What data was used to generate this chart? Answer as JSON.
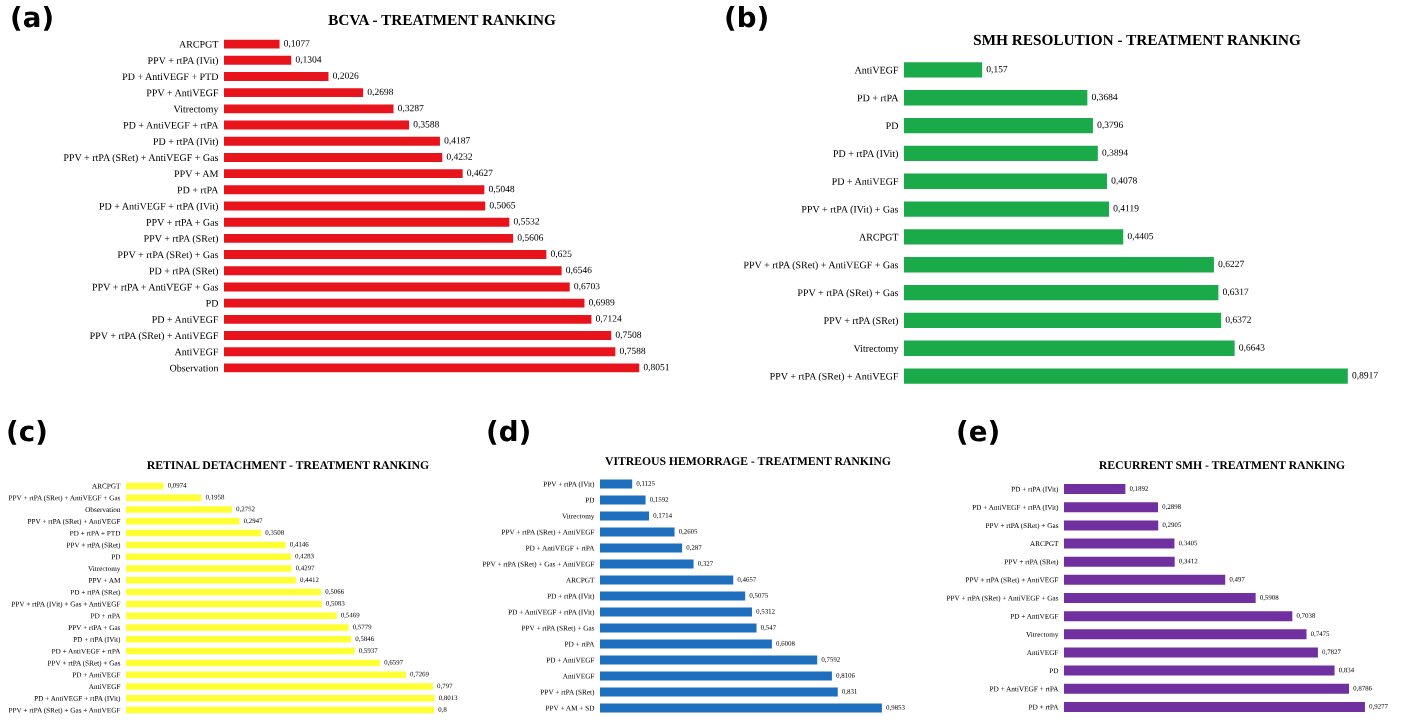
{
  "chart_data": [
    {
      "type": "bar",
      "orientation": "horizontal",
      "title": "BCVA - TREATMENT RANKING",
      "annotations": [
        "(a)"
      ],
      "tick_labels": "y",
      "categories": [
        "ARCPGT",
        "PPV + rtPA (IVit)",
        "PD + AntiVEGF + PTD",
        "PPV + AntiVEGF",
        "Vitrectomy",
        "PD + AntiVEGF + rtPA",
        "PD + rtPA (IVit)",
        "PPV + rtPA (SRet) + AntiVEGF + Gas",
        "PPV + AM",
        "PD + rtPA",
        "PD + AntiVEGF + rtPA (IVit)",
        "PPV + rtPA + Gas",
        "PPV + rtPA (SRet)",
        "PPV + rtPA (SRet) + Gas",
        "PD + rtPA (SRet)",
        "PPV + rtPA + AntiVEGF + Gas",
        "PD",
        "PD + AntiVEGF",
        "PPV + rtPA (SRet) + AntiVEGF",
        "AntiVEGF",
        "Observation"
      ],
      "values": [
        0.1077,
        0.1304,
        0.2026,
        0.2698,
        0.3287,
        0.3588,
        0.4187,
        0.4232,
        0.4627,
        0.5048,
        0.5065,
        0.5532,
        0.5606,
        0.625,
        0.6546,
        0.6703,
        0.6989,
        0.7124,
        0.7508,
        0.7588,
        0.8051
      ],
      "value_labels": [
        "0,1077",
        "0,1304",
        "0,2026",
        "0,2698",
        "0,3287",
        "0,3588",
        "0,4187",
        "0,4232",
        "0,4627",
        "0,5048",
        "0,5065",
        "0,5532",
        "0,5606",
        "0,625",
        "0,6546",
        "0,6703",
        "0,6989",
        "0,7124",
        "0,7508",
        "0,7588",
        "0,8051"
      ],
      "color": "#e8141c"
    },
    {
      "type": "bar",
      "orientation": "horizontal",
      "title": "SMH RESOLUTION - TREATMENT RANKING",
      "annotations": [
        "(b)"
      ],
      "tick_labels": "y",
      "categories": [
        "AntiVEGF",
        "PD + rtPA",
        "PD",
        "PD + rtPA (IVit)",
        "PD + AntiVEGF",
        "PPV + rtPA (IVit) + Gas",
        "ARCPGT",
        "PPV + rtPA (SRet) + AntiVEGF + Gas",
        "PPV + rtPA (SRet) + Gas",
        "PPV + rtPA (SRet)",
        "Vitrectomy",
        "PPV + rtPA (SRet) + AntiVEGF"
      ],
      "values": [
        0.157,
        0.3684,
        0.3796,
        0.3894,
        0.4078,
        0.4119,
        0.4405,
        0.6227,
        0.6317,
        0.6372,
        0.6643,
        0.8917
      ],
      "value_labels": [
        "0,157",
        "0,3684",
        "0,3796",
        "0,3894",
        "0,4078",
        "0,4119",
        "0,4405",
        "0,6227",
        "0,6317",
        "0,6372",
        "0,6643",
        "0,8917"
      ],
      "color": "#1aaa4a"
    },
    {
      "type": "bar",
      "orientation": "horizontal",
      "title": "RETINAL DETACHMENT - TREATMENT RANKING",
      "annotations": [
        "(c)"
      ],
      "tick_labels": "y",
      "categories": [
        "ARCPGT",
        "PPV + rtPA (SRet) + AntiVEGF + Gas",
        "Observation",
        "PPV + rtPA (SRet) + AntiVEGF",
        "PD + rtPA + PTD",
        "PPV + rtPA (SRet)",
        "PD",
        "Vitrectomy",
        "PPV + AM",
        "PD + rtPA (SRet)",
        "PPV + rtPA (IVit) + Gas + AntiVEGF",
        "PD + rtPA",
        "PPV + rtPA + Gas",
        "PD + rtPA (IVit)",
        "PD + AntiVEGF + rtPA",
        "PPV + rtPA (SRet) + Gas",
        "PD + AntiVEGF",
        "AntiVEGF",
        "PD + AntiVEGF + rtPA (IVit)",
        "PPV + rtPA (SRet) + Gas + AntiVEGF"
      ],
      "values": [
        0.0974,
        0.1958,
        0.2752,
        0.2947,
        0.3508,
        0.4146,
        0.4283,
        0.4297,
        0.4412,
        0.5066,
        0.5083,
        0.5469,
        0.5779,
        0.5846,
        0.5937,
        0.6597,
        0.7269,
        0.797,
        0.8013,
        0.8
      ],
      "value_labels": [
        "0,0974",
        "0,1958",
        "0,2752",
        "0,2947",
        "0,3508",
        "0,4146",
        "0,4283",
        "0,4297",
        "0,4412",
        "0,5066",
        "0,5083",
        "0,5469",
        "0,5779",
        "0,5846",
        "0,5937",
        "0,6597",
        "0,7269",
        "0,797",
        "0,8013",
        "0,8"
      ],
      "color": "#ffff33"
    },
    {
      "type": "bar",
      "orientation": "horizontal",
      "title": "VITREOUS HEMORRAGE - TREATMENT RANKING",
      "annotations": [
        "(d)"
      ],
      "tick_labels": "y",
      "categories": [
        "PPV + rtPA (IVit)",
        "PD",
        "Vitrectomy",
        "PPV + rtPA (SRet) + AntiVEGF",
        "PD + AntiVEGF + rtPA",
        "PPV + rtPA (SRet) + Gas + AntiVEGF",
        "ARCPGT",
        "PD + rtPA (IVit)",
        "PD + AntiVEGF + rtPA (IVit)",
        "PPV + rtPA (SRet) + Gas",
        "PD + rtPA",
        "PD + AntiVEGF",
        "AntiVEGF",
        "PPV + rtPA (SRet)",
        "PPV + AM + SD"
      ],
      "values": [
        0.1125,
        0.1592,
        0.1714,
        0.2605,
        0.287,
        0.327,
        0.4657,
        0.5075,
        0.5312,
        0.547,
        0.6008,
        0.7592,
        0.8106,
        0.831,
        0.9853
      ],
      "value_labels": [
        "0,1125",
        "0,1592",
        "0,1714",
        "0,2605",
        "0,287",
        "0,327",
        "0,4657",
        "0,5075",
        "0,5312",
        "0,547",
        "0,6008",
        "0,7592",
        "0,8106",
        "0,831",
        "0,9853"
      ],
      "color": "#1f6fbf"
    },
    {
      "type": "bar",
      "orientation": "horizontal",
      "title": "RECURRENT SMH - TREATMENT RANKING",
      "annotations": [
        "(e)"
      ],
      "tick_labels": "y",
      "categories": [
        "PD + rtPA (IVit)",
        "PD + AntiVEGF + rtPA (IVit)",
        "PPV + rtPA (SRet) + Gas",
        "ARCPGT",
        "PPV + rtPA (SRet)",
        "PPV + rtPA (SRet) + AntiVEGF",
        "PPV + rtPA (SRet) + AntiVEGF + Gas",
        "PD + AntiVEGF",
        "Vitrectomy",
        "AntiVEGF",
        "PD",
        "PD + AntiVEGF + rtPA",
        "PD + rtPA"
      ],
      "values": [
        0.1892,
        0.2898,
        0.2905,
        0.3405,
        0.3412,
        0.497,
        0.5908,
        0.7038,
        0.7475,
        0.7827,
        0.834,
        0.8786,
        0.9277
      ],
      "value_labels": [
        "0,1892",
        "0,2898",
        "0,2905",
        "0,3405",
        "0,3412",
        "0,497",
        "0,5908",
        "0,7038",
        "0,7475",
        "0,7827",
        "0,834",
        "0,8786",
        "0,9277"
      ],
      "color": "#7030a0"
    }
  ]
}
